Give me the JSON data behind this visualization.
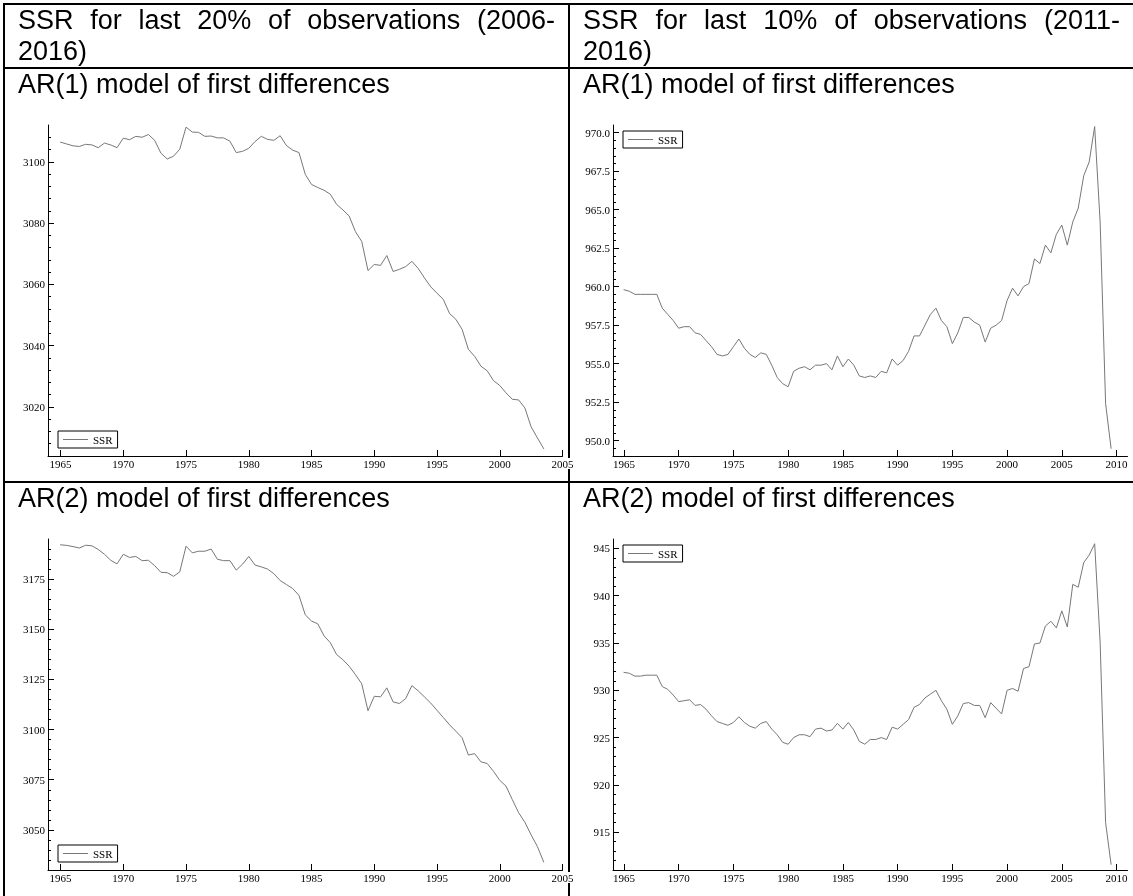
{
  "chart_data": [
    {
      "type": "line",
      "title": "SSR for last 20% of observations (2006-2016)",
      "subtitle": "AR(1) model of first differences",
      "x": [
        1965,
        1965.5,
        1966,
        1966.5,
        1967,
        1967.5,
        1968,
        1968.5,
        1969,
        1969.5,
        1970,
        1970.5,
        1971,
        1971.5,
        1972,
        1972.5,
        1973,
        1973.5,
        1974,
        1974.5,
        1975,
        1975.5,
        1976,
        1976.5,
        1977,
        1977.5,
        1978,
        1978.5,
        1979,
        1979.5,
        1980,
        1980.5,
        1981,
        1981.5,
        1982,
        1982.5,
        1983,
        1983.5,
        1984,
        1984.5,
        1985,
        1985.5,
        1986,
        1986.5,
        1987,
        1987.5,
        1988,
        1988.5,
        1989,
        1989.5,
        1990,
        1990.5,
        1991,
        1991.5,
        1992,
        1992.5,
        1993,
        1993.5,
        1994,
        1994.5,
        1995,
        1995.5,
        1996,
        1996.5,
        1997,
        1997.5,
        1998,
        1998.5,
        1999,
        1999.5,
        2000,
        2000.5,
        2001,
        2001.5,
        2002,
        2002.5,
        2003,
        2003.5
      ],
      "series": [
        {
          "name": "SSR",
          "color": "#777777",
          "values": [
            3106.4,
            3105.8,
            3105.2,
            3105.0,
            3105.7,
            3105.5,
            3104.6,
            3106.1,
            3105.5,
            3104.6,
            3107.7,
            3107.2,
            3108.3,
            3108.0,
            3108.9,
            3107.0,
            3102.8,
            3100.9,
            3101.8,
            3104.1,
            3111.3,
            3109.7,
            3109.6,
            3108.3,
            3108.4,
            3107.8,
            3107.8,
            3106.7,
            3103.0,
            3103.4,
            3104.4,
            3106.6,
            3108.3,
            3107.3,
            3107.0,
            3108.5,
            3105.3,
            3103.8,
            3103.0,
            3095.9,
            3092.6,
            3091.6,
            3090.7,
            3089.4,
            3086.1,
            3084.3,
            3082.3,
            3077.2,
            3074.0,
            3064.5,
            3066.5,
            3066.2,
            3069.4,
            3064.2,
            3064.9,
            3065.8,
            3067.5,
            3065.2,
            3062.1,
            3059.2,
            3057.1,
            3055.1,
            3050.5,
            3048.6,
            3045.3,
            3038.8,
            3036.5,
            3033.3,
            3031.8,
            3028.6,
            3027.0,
            3024.6,
            3022.5,
            3022.3,
            3019.7,
            3013.5,
            3009.9,
            3006.4
          ]
        }
      ],
      "xlim": [
        1964,
        2005
      ],
      "xticks": [
        1965,
        1970,
        1975,
        1980,
        1985,
        1990,
        1995,
        2000,
        2005
      ],
      "ylim": [
        3004,
        3112
      ],
      "yticks": [
        {
          "value": 3008,
          "label": null
        },
        {
          "value": 3012,
          "label": null
        },
        {
          "value": 3016,
          "label": null
        },
        3020,
        {
          "value": 3024,
          "label": null
        },
        {
          "value": 3028,
          "label": null
        },
        {
          "value": 3032,
          "label": null
        },
        {
          "value": 3036,
          "label": null
        },
        3040,
        {
          "value": 3044,
          "label": null
        },
        {
          "value": 3048,
          "label": null
        },
        {
          "value": 3052,
          "label": null
        },
        {
          "value": 3056,
          "label": null
        },
        3060,
        {
          "value": 3064,
          "label": null
        },
        {
          "value": 3068,
          "label": null
        },
        {
          "value": 3072,
          "label": null
        },
        {
          "value": 3076,
          "label": null
        },
        3080,
        {
          "value": 3084,
          "label": null
        },
        {
          "value": 3088,
          "label": null
        },
        {
          "value": 3092,
          "label": null
        },
        {
          "value": 3096,
          "label": null
        },
        3100,
        {
          "value": 3104,
          "label": null
        },
        {
          "value": 3108,
          "label": null
        }
      ],
      "legend": "bottom left",
      "line_style": "solid"
    },
    {
      "type": "line",
      "title": "SSR for last 10% of observations (2011-2016)",
      "subtitle": "AR(1) model of first differences",
      "x": [
        1965,
        1965.5,
        1966,
        1966.5,
        1967,
        1967.5,
        1968,
        1968.5,
        1969,
        1969.5,
        1970,
        1970.5,
        1971,
        1971.5,
        1972,
        1972.5,
        1973,
        1973.5,
        1974,
        1974.5,
        1975,
        1975.5,
        1976,
        1976.5,
        1977,
        1977.5,
        1978,
        1978.5,
        1979,
        1979.5,
        1980,
        1980.5,
        1981,
        1981.5,
        1982,
        1982.5,
        1983,
        1983.5,
        1984,
        1984.5,
        1985,
        1985.5,
        1986,
        1986.5,
        1987,
        1987.5,
        1988,
        1988.5,
        1989,
        1989.5,
        1990,
        1990.5,
        1991,
        1991.5,
        1992,
        1992.5,
        1993,
        1993.5,
        1994,
        1994.5,
        1995,
        1995.5,
        1996,
        1996.5,
        1997,
        1997.5,
        1998,
        1998.5,
        1999,
        1999.5,
        2000,
        2000.5,
        2001,
        2001.5,
        2002,
        2002.5,
        2003,
        2003.5,
        2004,
        2004.5,
        2005,
        2005.5,
        2006,
        2006.5,
        2007,
        2007.5,
        2008,
        2008.5,
        2009,
        2009.5
      ],
      "series": [
        {
          "name": "SSR",
          "color": "#777777",
          "values": [
            959.8,
            959.7,
            959.5,
            959.5,
            959.5,
            959.5,
            959.5,
            958.6,
            958.2,
            957.8,
            957.3,
            957.4,
            957.4,
            957.0,
            956.9,
            956.5,
            956.1,
            955.6,
            955.5,
            955.6,
            956.1,
            956.6,
            956.0,
            955.6,
            955.4,
            955.7,
            955.6,
            954.9,
            954.1,
            953.7,
            953.5,
            954.5,
            954.7,
            954.8,
            954.6,
            954.9,
            954.9,
            955.0,
            954.6,
            955.5,
            954.8,
            955.3,
            954.9,
            954.2,
            954.1,
            954.2,
            954.1,
            954.5,
            954.4,
            955.3,
            954.9,
            955.2,
            955.8,
            956.8,
            956.8,
            957.5,
            958.2,
            958.6,
            957.8,
            957.4,
            956.3,
            957.0,
            958.0,
            958.0,
            957.7,
            957.5,
            956.4,
            957.3,
            957.5,
            957.8,
            959.1,
            959.9,
            959.4,
            960.0,
            960.2,
            961.8,
            961.5,
            962.7,
            962.2,
            963.4,
            964.0,
            962.7,
            964.2,
            965.1,
            967.2,
            968.1,
            970.4,
            964.2,
            952.4,
            949.5
          ]
        }
      ],
      "xlim": [
        1964,
        2011
      ],
      "xticks": [
        1965,
        1970,
        1975,
        1980,
        1985,
        1990,
        1995,
        2000,
        2005,
        2010
      ],
      "ylim": [
        949,
        970.5
      ],
      "yticks": [
        {
          "value": 949.5,
          "label": null
        },
        {
          "value": 950,
          "label": "950.0"
        },
        {
          "value": 950.5,
          "label": null
        },
        {
          "value": 951,
          "label": null
        },
        {
          "value": 951.5,
          "label": null
        },
        {
          "value": 952,
          "label": null
        },
        952.5,
        {
          "value": 953,
          "label": null
        },
        {
          "value": 953.5,
          "label": null
        },
        {
          "value": 954,
          "label": null
        },
        {
          "value": 954.5,
          "label": null
        },
        {
          "value": 955,
          "label": "955.0"
        },
        {
          "value": 955.5,
          "label": null
        },
        {
          "value": 956,
          "label": null
        },
        {
          "value": 956.5,
          "label": null
        },
        {
          "value": 957,
          "label": null
        },
        957.5,
        {
          "value": 958,
          "label": null
        },
        {
          "value": 958.5,
          "label": null
        },
        {
          "value": 959,
          "label": null
        },
        {
          "value": 959.5,
          "label": null
        },
        {
          "value": 960,
          "label": "960.0"
        },
        {
          "value": 960.5,
          "label": null
        },
        {
          "value": 961,
          "label": null
        },
        {
          "value": 961.5,
          "label": null
        },
        {
          "value": 962,
          "label": null
        },
        962.5,
        {
          "value": 963,
          "label": null
        },
        {
          "value": 963.5,
          "label": null
        },
        {
          "value": 964,
          "label": null
        },
        {
          "value": 964.5,
          "label": null
        },
        {
          "value": 965,
          "label": "965.0"
        },
        {
          "value": 965.5,
          "label": null
        },
        {
          "value": 966,
          "label": null
        },
        {
          "value": 966.5,
          "label": null
        },
        {
          "value": 967,
          "label": null
        },
        967.5,
        {
          "value": 968,
          "label": null
        },
        {
          "value": 968.5,
          "label": null
        },
        {
          "value": 969,
          "label": null
        },
        {
          "value": 969.5,
          "label": null
        },
        {
          "value": 970,
          "label": "970.0"
        }
      ],
      "legend": "top left",
      "line_style": "solid"
    },
    {
      "type": "line",
      "title": "AR(2) model of first differences",
      "x": [
        1965,
        1965.5,
        1966,
        1966.5,
        1967,
        1967.5,
        1968,
        1968.5,
        1969,
        1969.5,
        1970,
        1970.5,
        1971,
        1971.5,
        1972,
        1972.5,
        1973,
        1973.5,
        1974,
        1974.5,
        1975,
        1975.5,
        1976,
        1976.5,
        1977,
        1977.5,
        1978,
        1978.5,
        1979,
        1979.5,
        1980,
        1980.5,
        1981,
        1981.5,
        1982,
        1982.5,
        1983,
        1983.5,
        1984,
        1984.5,
        1985,
        1985.5,
        1986,
        1986.5,
        1987,
        1987.5,
        1988,
        1988.5,
        1989,
        1989.5,
        1990,
        1990.5,
        1991,
        1991.5,
        1992,
        1992.5,
        1993,
        1993.5,
        1994,
        1994.5,
        1995,
        1995.5,
        1996,
        1996.5,
        1997,
        1997.5,
        1998,
        1998.5,
        1999,
        1999.5,
        2000,
        2000.5,
        2001,
        2001.5,
        2002,
        2002.5,
        2003,
        2003.5
      ],
      "series": [
        {
          "name": "SSR",
          "color": "#777777",
          "values": [
            3192.1,
            3191.8,
            3191.2,
            3190.5,
            3191.9,
            3191.6,
            3189.8,
            3187.4,
            3184.4,
            3182.6,
            3187.4,
            3185.8,
            3186.3,
            3184.2,
            3184.4,
            3181.7,
            3178.4,
            3178.2,
            3176.4,
            3178.6,
            3191.4,
            3188.1,
            3188.9,
            3188.9,
            3190.0,
            3184.9,
            3184.2,
            3184.2,
            3179.5,
            3182.4,
            3186.3,
            3182.0,
            3181.1,
            3180.0,
            3177.7,
            3174.3,
            3172.3,
            3170.3,
            3166.9,
            3157.2,
            3154.1,
            3152.7,
            3146.7,
            3143.3,
            3137.4,
            3134.8,
            3131.6,
            3127.4,
            3122.8,
            3109.4,
            3116.6,
            3116.3,
            3120.8,
            3113.8,
            3113.0,
            3115.4,
            3121.9,
            3119.3,
            3116.3,
            3113.2,
            3109.6,
            3106.0,
            3102.4,
            3099.2,
            3095.9,
            3087.3,
            3088.0,
            3083.9,
            3083.1,
            3079.2,
            3074.7,
            3071.8,
            3065.1,
            3058.6,
            3053.8,
            3047.5,
            3041.7,
            3034.0
          ]
        }
      ],
      "xlim": [
        1964,
        2005
      ],
      "xticks": [
        1965,
        1970,
        1975,
        1980,
        1985,
        1990,
        1995,
        2000,
        2005
      ],
      "ylim": [
        3030,
        3195
      ],
      "yticks": [
        {
          "value": 3035,
          "label": null
        },
        {
          "value": 3040,
          "label": null
        },
        {
          "value": 3045,
          "label": null
        },
        3050,
        {
          "value": 3055,
          "label": null
        },
        {
          "value": 3060,
          "label": null
        },
        {
          "value": 3065,
          "label": null
        },
        {
          "value": 3070,
          "label": null
        },
        3075,
        {
          "value": 3080,
          "label": null
        },
        {
          "value": 3085,
          "label": null
        },
        {
          "value": 3090,
          "label": null
        },
        {
          "value": 3095,
          "label": null
        },
        3100,
        {
          "value": 3105,
          "label": null
        },
        {
          "value": 3110,
          "label": null
        },
        {
          "value": 3115,
          "label": null
        },
        {
          "value": 3120,
          "label": null
        },
        3125,
        {
          "value": 3130,
          "label": null
        },
        {
          "value": 3135,
          "label": null
        },
        {
          "value": 3140,
          "label": null
        },
        {
          "value": 3145,
          "label": null
        },
        3150,
        {
          "value": 3155,
          "label": null
        },
        {
          "value": 3160,
          "label": null
        },
        {
          "value": 3165,
          "label": null
        },
        {
          "value": 3170,
          "label": null
        },
        3175,
        {
          "value": 3180,
          "label": null
        },
        {
          "value": 3185,
          "label": null
        },
        {
          "value": 3190,
          "label": null
        }
      ],
      "legend": "bottom left",
      "line_style": "solid"
    },
    {
      "type": "line",
      "title": "AR(2) model of first differences",
      "x": [
        1965,
        1965.5,
        1966,
        1966.5,
        1967,
        1967.5,
        1968,
        1968.5,
        1969,
        1969.5,
        1970,
        1970.5,
        1971,
        1971.5,
        1972,
        1972.5,
        1973,
        1973.5,
        1974,
        1974.5,
        1975,
        1975.5,
        1976,
        1976.5,
        1977,
        1977.5,
        1978,
        1978.5,
        1979,
        1979.5,
        1980,
        1980.5,
        1981,
        1981.5,
        1982,
        1982.5,
        1983,
        1983.5,
        1984,
        1984.5,
        1985,
        1985.5,
        1986,
        1986.5,
        1987,
        1987.5,
        1988,
        1988.5,
        1989,
        1989.5,
        1990,
        1990.5,
        1991,
        1991.5,
        1992,
        1992.5,
        1993,
        1993.5,
        1994,
        1994.5,
        1995,
        1995.5,
        1996,
        1996.5,
        1997,
        1997.5,
        1998,
        1998.5,
        1999,
        1999.5,
        2000,
        2000.5,
        2001,
        2001.5,
        2002,
        2002.5,
        2003,
        2003.5,
        2004,
        2004.5,
        2005,
        2005.5,
        2006,
        2006.5,
        2007,
        2007.5,
        2008,
        2008.5,
        2009,
        2009.5
      ],
      "series": [
        {
          "name": "SSR",
          "color": "#777777",
          "values": [
            931.9,
            931.8,
            931.5,
            931.5,
            931.6,
            931.6,
            931.6,
            930.4,
            930.1,
            929.5,
            928.8,
            928.9,
            929.0,
            928.4,
            928.5,
            928.0,
            927.3,
            926.7,
            926.5,
            926.3,
            926.6,
            927.2,
            926.6,
            926.2,
            926.0,
            926.5,
            926.7,
            925.9,
            925.3,
            924.5,
            924.3,
            925.0,
            925.3,
            925.3,
            925.1,
            925.9,
            926.0,
            925.7,
            925.8,
            926.5,
            925.9,
            926.6,
            925.8,
            924.6,
            924.3,
            924.8,
            924.8,
            925.0,
            924.8,
            926.1,
            925.9,
            926.4,
            926.9,
            928.2,
            928.5,
            929.2,
            929.6,
            930.0,
            928.9,
            928.0,
            926.4,
            927.3,
            928.6,
            928.7,
            928.4,
            928.4,
            927.1,
            928.7,
            928.1,
            927.5,
            930.0,
            930.2,
            929.9,
            932.3,
            932.5,
            934.9,
            935.0,
            936.8,
            937.3,
            936.6,
            938.4,
            936.7,
            941.2,
            940.9,
            943.5,
            944.3,
            945.5,
            935.1,
            916.0,
            911.6
          ]
        }
      ],
      "xlim": [
        1964,
        2011
      ],
      "xticks": [
        1965,
        1970,
        1975,
        1980,
        1985,
        1990,
        1995,
        2000,
        2005,
        2010
      ],
      "ylim": [
        911,
        946
      ],
      "yticks": [
        {
          "value": 912,
          "label": null
        },
        {
          "value": 913,
          "label": null
        },
        {
          "value": 914,
          "label": null
        },
        915,
        {
          "value": 916,
          "label": null
        },
        {
          "value": 917,
          "label": null
        },
        {
          "value": 918,
          "label": null
        },
        {
          "value": 919,
          "label": null
        },
        920,
        {
          "value": 921,
          "label": null
        },
        {
          "value": 922,
          "label": null
        },
        {
          "value": 923,
          "label": null
        },
        {
          "value": 924,
          "label": null
        },
        925,
        {
          "value": 926,
          "label": null
        },
        {
          "value": 927,
          "label": null
        },
        {
          "value": 928,
          "label": null
        },
        {
          "value": 929,
          "label": null
        },
        930,
        {
          "value": 931,
          "label": null
        },
        {
          "value": 932,
          "label": null
        },
        {
          "value": 933,
          "label": null
        },
        {
          "value": 934,
          "label": null
        },
        935,
        {
          "value": 936,
          "label": null
        },
        {
          "value": 937,
          "label": null
        },
        {
          "value": 938,
          "label": null
        },
        {
          "value": 939,
          "label": null
        },
        940,
        {
          "value": 941,
          "label": null
        },
        {
          "value": 942,
          "label": null
        },
        {
          "value": 943,
          "label": null
        },
        {
          "value": 944,
          "label": null
        },
        945
      ],
      "legend": "top left",
      "line_style": "solid"
    }
  ]
}
